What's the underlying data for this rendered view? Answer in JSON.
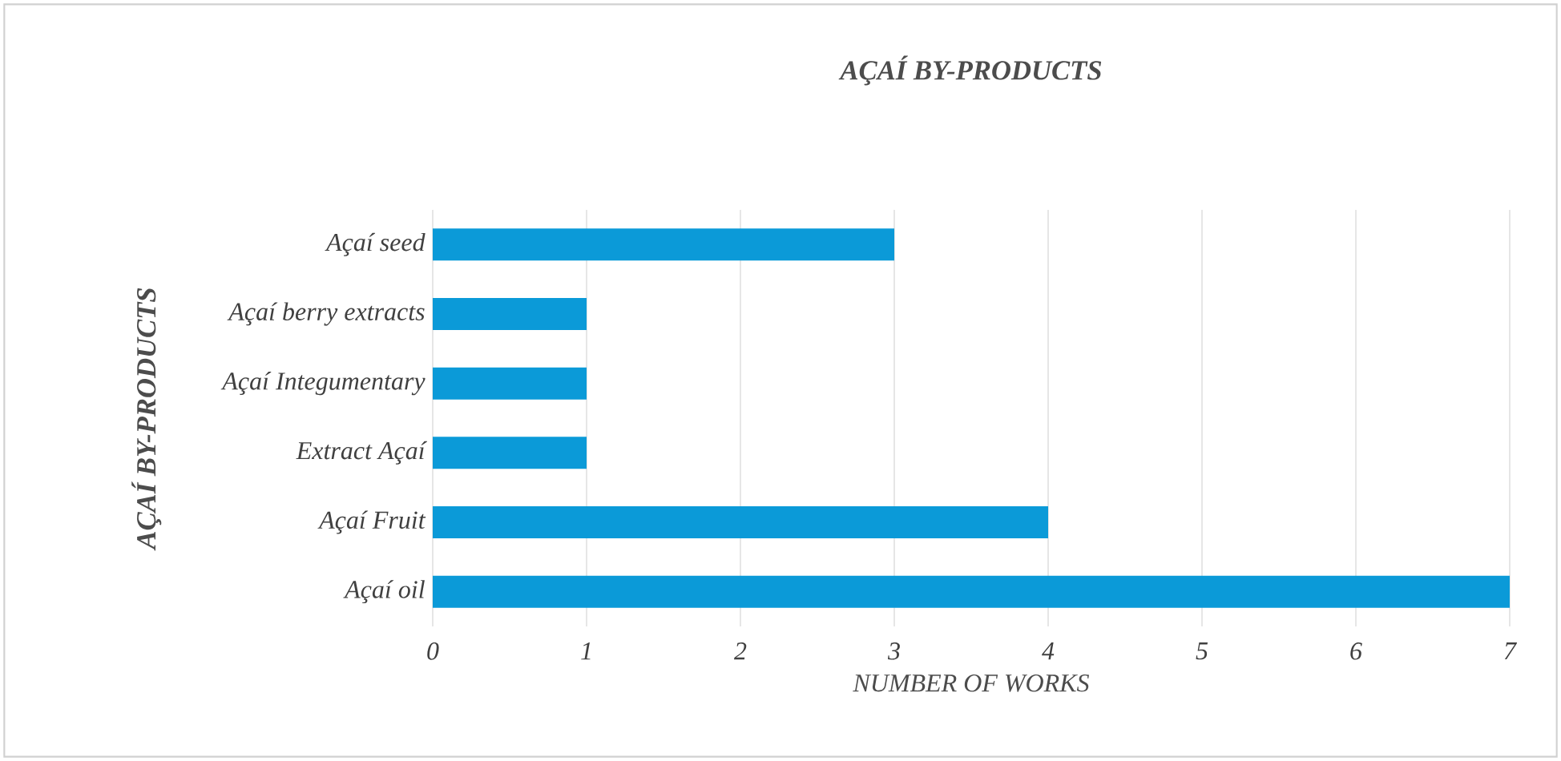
{
  "chart_data": {
    "type": "bar",
    "orientation": "horizontal",
    "title": "AÇAÍ BY-PRODUCTS",
    "xlabel": "NUMBER OF WORKS",
    "ylabel": "AÇAÍ BY-PRODUCTS",
    "categories": [
      "Açaí seed",
      "Açaí berry extracts",
      "Açaí Integumentary",
      "Extract Açaí",
      "Açaí Fruit",
      "Açaí oil"
    ],
    "values": [
      3,
      1,
      1,
      1,
      4,
      7
    ],
    "color": "#0b9ad8",
    "xlim": [
      0,
      7
    ],
    "xticks": [
      0,
      1,
      2,
      3,
      4,
      5,
      6,
      7
    ],
    "grid": "x"
  }
}
